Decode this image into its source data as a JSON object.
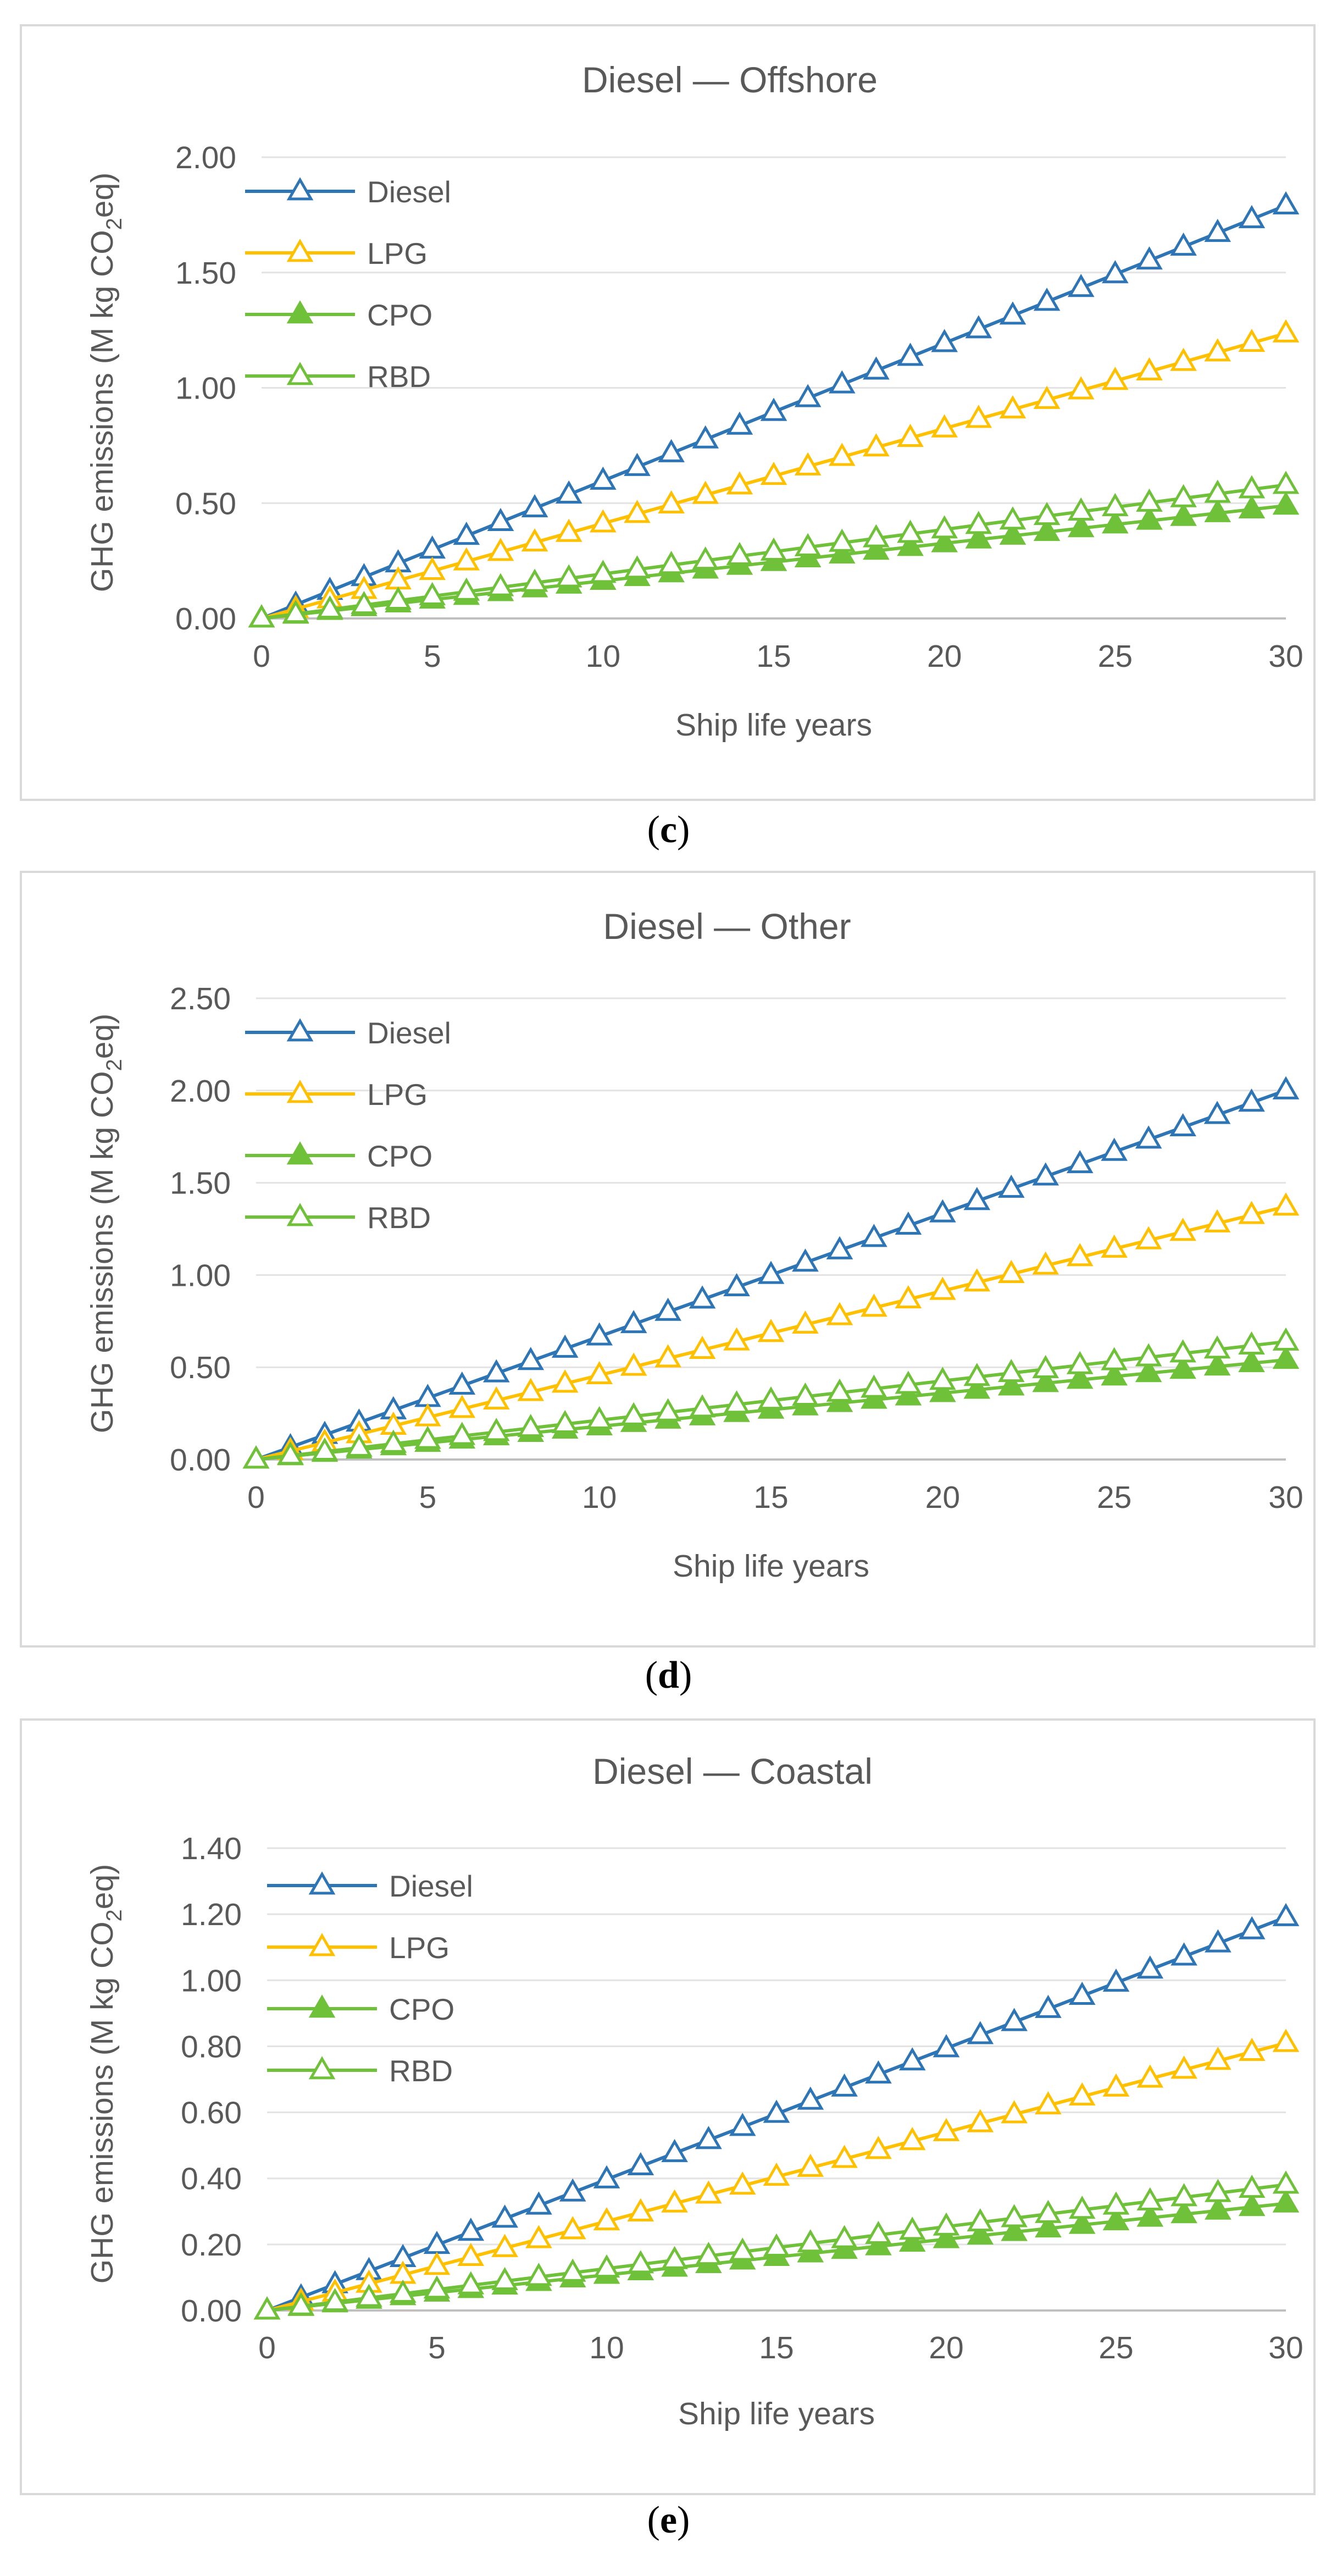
{
  "chart_data": [
    {
      "type": "line",
      "title": "Diesel — Offshore",
      "xlabel": "Ship life years",
      "ylabel": "GHG emissions (M kg CO",
      "ylabel_sub": "2",
      "ylabel_suffix": "eq)",
      "caption_letter": "c",
      "xlim": [
        0,
        30
      ],
      "xticks": [
        "0",
        "5",
        "10",
        "15",
        "20",
        "25",
        "30"
      ],
      "ylim": [
        0,
        2.0
      ],
      "yticks": [
        "0.00",
        "0.50",
        "1.00",
        "1.50",
        "2.00"
      ],
      "x": [
        0,
        1,
        2,
        3,
        4,
        5,
        6,
        7,
        8,
        9,
        10,
        11,
        12,
        13,
        14,
        15,
        16,
        17,
        18,
        19,
        20,
        21,
        22,
        23,
        24,
        25,
        26,
        27,
        28,
        29,
        30
      ],
      "series": [
        {
          "name": "Diesel",
          "color": "#2e75b6",
          "marker": "triangle-open",
          "slope": 0.0597
        },
        {
          "name": "LPG",
          "color": "#ffc000",
          "marker": "triangle-open",
          "slope": 0.0412
        },
        {
          "name": "CPO",
          "color": "#70c13a",
          "marker": "triangle-filled",
          "slope": 0.0163
        },
        {
          "name": "RBD",
          "color": "#70c13a",
          "marker": "triangle-open",
          "slope": 0.0193
        }
      ]
    },
    {
      "type": "line",
      "title": "Diesel — Other",
      "xlabel": "Ship life years",
      "ylabel": "GHG emissions (M kg CO",
      "ylabel_sub": "2",
      "ylabel_suffix": "eq)",
      "caption_letter": "d",
      "xlim": [
        0,
        30
      ],
      "xticks": [
        "0",
        "5",
        "10",
        "15",
        "20",
        "25",
        "30"
      ],
      "ylim": [
        0,
        2.5
      ],
      "yticks": [
        "0.00",
        "0.50",
        "1.00",
        "1.50",
        "2.00",
        "2.50"
      ],
      "x": [
        0,
        1,
        2,
        3,
        4,
        5,
        6,
        7,
        8,
        9,
        10,
        11,
        12,
        13,
        14,
        15,
        16,
        17,
        18,
        19,
        20,
        21,
        22,
        23,
        24,
        25,
        26,
        27,
        28,
        29,
        30
      ],
      "series": [
        {
          "name": "Diesel",
          "color": "#2e75b6",
          "marker": "triangle-open",
          "slope": 0.0667
        },
        {
          "name": "LPG",
          "color": "#ffc000",
          "marker": "triangle-open",
          "slope": 0.0457
        },
        {
          "name": "CPO",
          "color": "#70c13a",
          "marker": "triangle-filled",
          "slope": 0.018
        },
        {
          "name": "RBD",
          "color": "#70c13a",
          "marker": "triangle-open",
          "slope": 0.0213
        }
      ]
    },
    {
      "type": "line",
      "title": "Diesel — Coastal",
      "xlabel": "Ship life years",
      "ylabel": "GHG emissions (M kg CO",
      "ylabel_sub": "2",
      "ylabel_suffix": "eq)",
      "caption_letter": "e",
      "xlim": [
        0,
        30
      ],
      "xticks": [
        "0",
        "5",
        "10",
        "15",
        "20",
        "25",
        "30"
      ],
      "ylim": [
        0,
        1.4
      ],
      "yticks": [
        "0.00",
        "0.20",
        "0.40",
        "0.60",
        "0.80",
        "1.00",
        "1.20",
        "1.40"
      ],
      "x": [
        0,
        1,
        2,
        3,
        4,
        5,
        6,
        7,
        8,
        9,
        10,
        11,
        12,
        13,
        14,
        15,
        16,
        17,
        18,
        19,
        20,
        21,
        22,
        23,
        24,
        25,
        26,
        27,
        28,
        29,
        30
      ],
      "series": [
        {
          "name": "Diesel",
          "color": "#2e75b6",
          "marker": "triangle-open",
          "slope": 0.0397
        },
        {
          "name": "LPG",
          "color": "#ffc000",
          "marker": "triangle-open",
          "slope": 0.027
        },
        {
          "name": "CPO",
          "color": "#70c13a",
          "marker": "triangle-filled",
          "slope": 0.0108
        },
        {
          "name": "RBD",
          "color": "#70c13a",
          "marker": "triangle-open",
          "slope": 0.0127
        }
      ]
    }
  ]
}
